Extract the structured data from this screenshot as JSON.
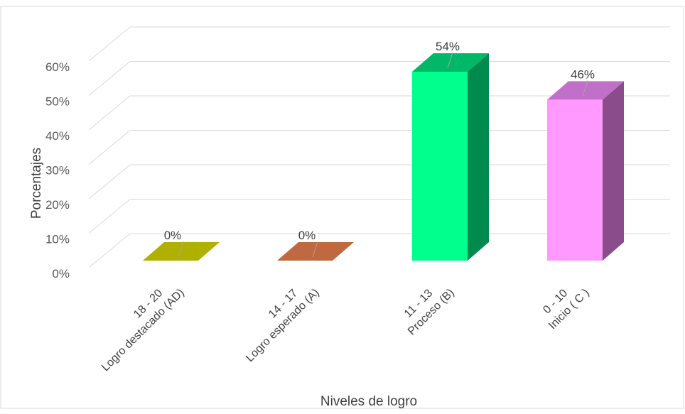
{
  "chart_data": {
    "type": "bar",
    "style": "3d-column",
    "categories": [
      [
        "18 - 20",
        "Logro destacado (AD)"
      ],
      [
        "14 - 17",
        "Logro esperado (A)"
      ],
      [
        "11 - 13",
        "Proceso (B)"
      ],
      [
        "0 - 10",
        "Inicio ( C )"
      ]
    ],
    "values": [
      0,
      0,
      54,
      46
    ],
    "data_labels": [
      "0%",
      "0%",
      "54%",
      "46%"
    ],
    "colors": [
      {
        "front": "#c8c800",
        "top": "#b0b000",
        "side": "#8a8a00"
      },
      {
        "front": "#c46a40",
        "top": "#c0683f",
        "side": "#8e4a2c"
      },
      {
        "front": "#00ff8c",
        "top": "#00b868",
        "side": "#008a4e"
      },
      {
        "front": "#ff99ff",
        "top": "#c070c8",
        "side": "#8a4c8a"
      }
    ],
    "xlabel": "Niveles de logro",
    "ylabel": "Porcentajes",
    "y_ticks": [
      "0%",
      "10%",
      "20%",
      "30%",
      "40%",
      "50%",
      "60%"
    ],
    "ylim": [
      0,
      60
    ],
    "grid": true,
    "legend": "none"
  }
}
